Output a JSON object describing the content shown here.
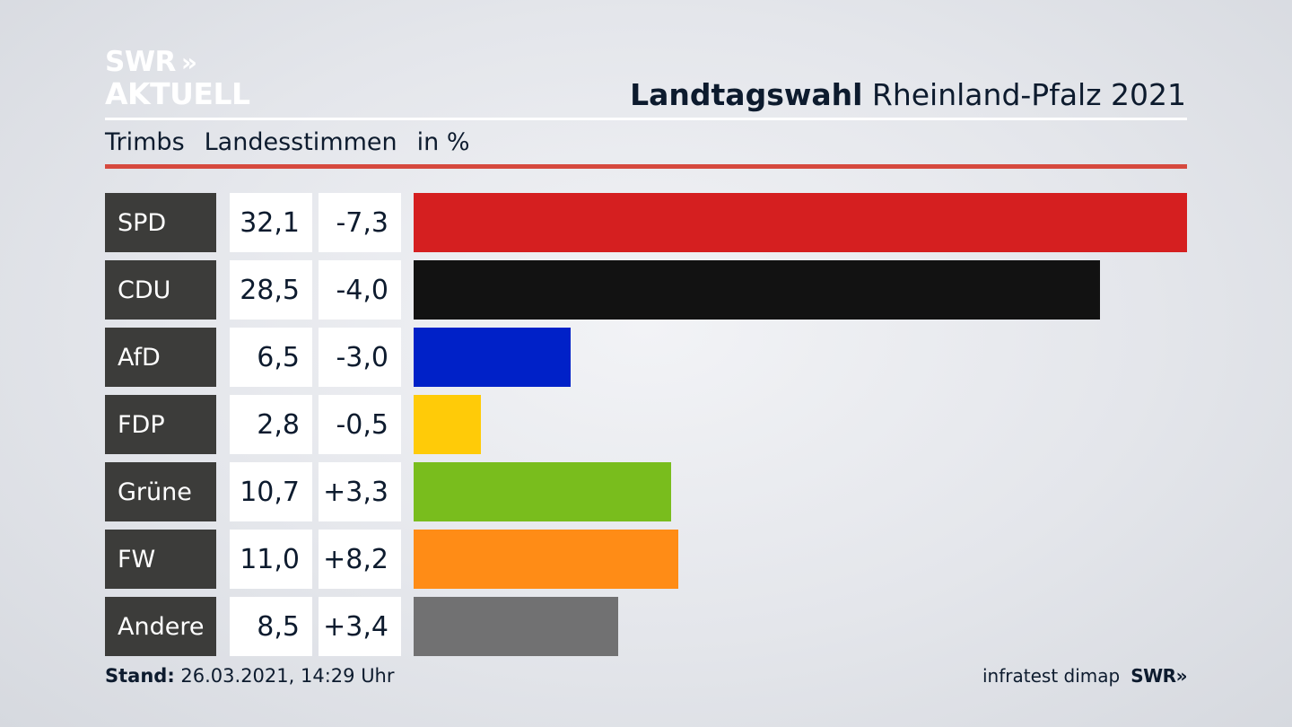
{
  "logo": {
    "line1": "SWR",
    "arrows": "»",
    "line2": "AKTUELL"
  },
  "header": {
    "title_bold": "Landtagswahl",
    "title_rest": "Rheinland-Pfalz 2021"
  },
  "subheader": {
    "region": "Trimbs",
    "metric": "Landesstimmen",
    "unit": "in %"
  },
  "footer": {
    "stand_label": "Stand:",
    "stand_value": "26.03.2021, 14:29 Uhr",
    "source": "infratest dimap",
    "brand": "SWR»"
  },
  "chart_data": {
    "type": "bar",
    "orientation": "horizontal",
    "categories": [
      "SPD",
      "CDU",
      "AfD",
      "FDP",
      "Grüne",
      "FW",
      "Andere"
    ],
    "values": [
      32.1,
      28.5,
      6.5,
      2.8,
      10.7,
      11.0,
      8.5
    ],
    "values_label": [
      "32,1",
      "28,5",
      "6,5",
      "2,8",
      "10,7",
      "11,0",
      "8,5"
    ],
    "changes_label": [
      "-7,3",
      "-4,0",
      "-3,0",
      "-0,5",
      "+3,3",
      "+8,2",
      "+3,4"
    ],
    "colors": [
      "#d51f20",
      "#121212",
      "#0021c8",
      "#ffcb08",
      "#79bd1d",
      "#ff8c16",
      "#717172"
    ],
    "xlim": [
      0,
      32.1
    ]
  }
}
